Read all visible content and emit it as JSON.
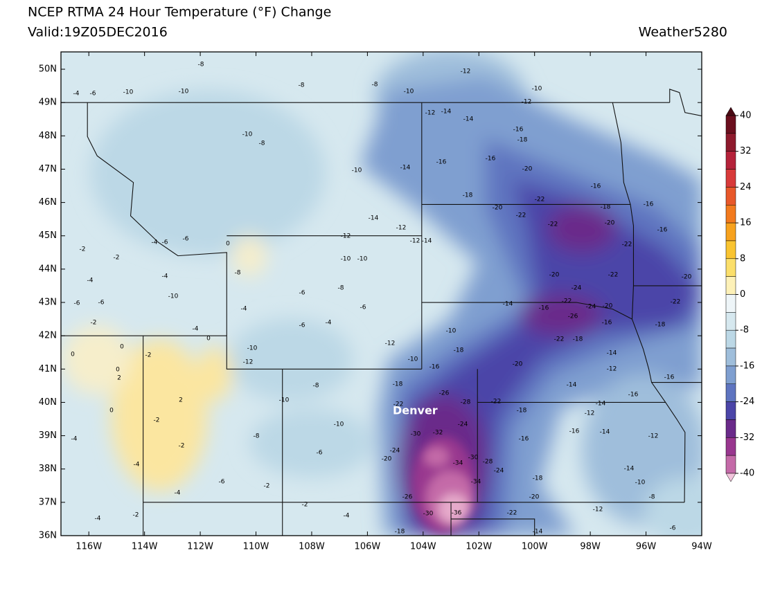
{
  "chart_data": {
    "type": "map",
    "title": "NCEP RTMA 24 Hour Temperature (°F) Change",
    "subtitle": "Valid:19Z05DEC2016",
    "source": "Weather5280",
    "xlim": [
      -117,
      -94
    ],
    "ylim": [
      36,
      50.52
    ],
    "xticks": [
      {
        "value": -116,
        "label": "116W"
      },
      {
        "value": -114,
        "label": "114W"
      },
      {
        "value": -112,
        "label": "112W"
      },
      {
        "value": -110,
        "label": "110W"
      },
      {
        "value": -108,
        "label": "108W"
      },
      {
        "value": -106,
        "label": "106W"
      },
      {
        "value": -104,
        "label": "104W"
      },
      {
        "value": -102,
        "label": "102W"
      },
      {
        "value": -100,
        "label": "100W"
      },
      {
        "value": -98,
        "label": "98W"
      },
      {
        "value": -96,
        "label": "96W"
      },
      {
        "value": -94,
        "label": "94W"
      }
    ],
    "yticks": [
      {
        "value": 36,
        "label": "36N"
      },
      {
        "value": 37,
        "label": "37N"
      },
      {
        "value": 38,
        "label": "38N"
      },
      {
        "value": 39,
        "label": "39N"
      },
      {
        "value": 40,
        "label": "40N"
      },
      {
        "value": 41,
        "label": "41N"
      },
      {
        "value": 42,
        "label": "42N"
      },
      {
        "value": 43,
        "label": "43N"
      },
      {
        "value": 44,
        "label": "44N"
      },
      {
        "value": 45,
        "label": "45N"
      },
      {
        "value": 46,
        "label": "46N"
      },
      {
        "value": 47,
        "label": "47N"
      },
      {
        "value": 48,
        "label": "48N"
      },
      {
        "value": 49,
        "label": "49N"
      },
      {
        "value": 50,
        "label": "50N"
      }
    ],
    "city_label": "Denver",
    "contour_labels": [
      -8,
      -12,
      -4,
      -6,
      -10,
      -10,
      -8,
      -8,
      -10,
      -10,
      -12,
      -12,
      -14,
      -14,
      -16,
      -18,
      -10,
      -8,
      -10,
      -14,
      -16,
      -16,
      -20,
      -18,
      -20,
      -22,
      -22,
      -22,
      -18,
      -20,
      -22,
      -22,
      -20,
      -24,
      -22,
      -24,
      -20,
      -26,
      -22,
      -18,
      -14,
      -16,
      -10,
      -18,
      -20,
      -16,
      -16,
      -16,
      -20,
      -22,
      -18,
      -16,
      -14,
      -12,
      -14,
      -14,
      -16,
      -16,
      -12,
      -16,
      -14,
      -12,
      -16,
      -18,
      -22,
      -24,
      -28,
      -26,
      -30,
      -32,
      -34,
      -30,
      -28,
      -24,
      -34,
      -36,
      -30,
      -26,
      -18,
      -22,
      -20,
      -18,
      -14,
      -12,
      -10,
      -8,
      -14,
      -6,
      -22,
      -18,
      -24,
      -20,
      -10,
      -16,
      -12,
      -6,
      -4,
      -6,
      -10,
      -12,
      -8,
      -10,
      -10,
      -8,
      -6,
      -2,
      -2,
      -4,
      -6,
      -4,
      -2,
      -4,
      -4,
      -2,
      2,
      0,
      -4,
      -2,
      0,
      0,
      2,
      0,
      -2,
      -6,
      -10,
      -4,
      -6,
      -8,
      -10,
      -10,
      -12,
      -14,
      -12,
      -14,
      -12,
      -8,
      0,
      -6,
      -4,
      -2,
      -2,
      -4,
      -4,
      -6,
      -4,
      0,
      -2,
      -6
    ],
    "colorbar": {
      "lim": [
        -40,
        40
      ],
      "ticks": [
        40,
        32,
        24,
        16,
        8,
        0,
        -8,
        -16,
        -24,
        -32,
        -40
      ],
      "colors": [
        "#6b0f1e",
        "#8e1a2d",
        "#b5223a",
        "#d83a3a",
        "#e8582a",
        "#f27a1e",
        "#f7a21e",
        "#f9c431",
        "#fbdf6b",
        "#fdf1b8",
        "#eef5f8",
        "#d6e8ef",
        "#bcd8e6",
        "#9fbedb",
        "#7f9fd0",
        "#5e74c0",
        "#4b45a8",
        "#6a2a8a",
        "#99378f",
        "#c46aa8"
      ],
      "over_color": "#4a0a14",
      "under_color": "#f2c4dc"
    }
  }
}
